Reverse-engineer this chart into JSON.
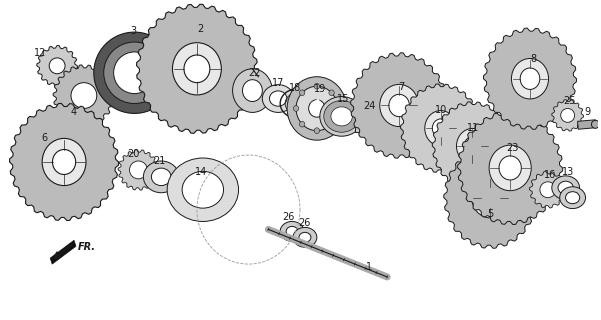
{
  "bg_color": "#ffffff",
  "fig_width": 6.01,
  "fig_height": 3.2,
  "dpi": 100,
  "lc": "#1a1a1a",
  "fc_gear": "#cccccc",
  "fc_dark": "#888888",
  "fc_med": "#aaaaaa"
}
